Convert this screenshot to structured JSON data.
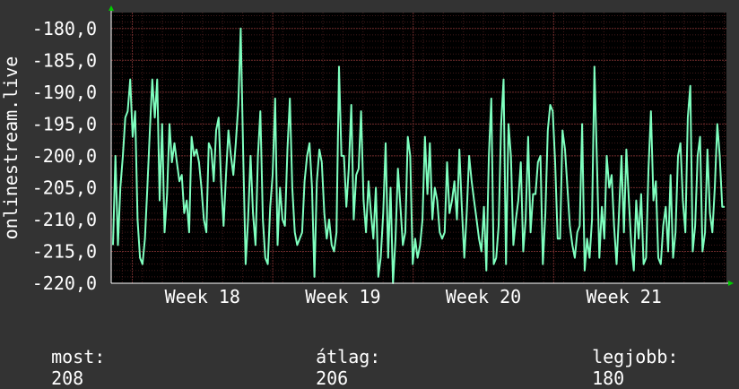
{
  "colors": {
    "background": "#333333",
    "plot_background": "#000000",
    "grid": "#6b2a2a",
    "line": "#7fffbf",
    "text": "#ffffff",
    "axis_arrow": "#00cc00"
  },
  "footer": {
    "current_label": "most:",
    "current_value": "208",
    "average_label": "átlag:",
    "average_value": "206",
    "best_label": "legjobb:",
    "best_value": "180"
  },
  "chart_data": {
    "type": "line",
    "title": "",
    "ylabel": "onlinestream.live",
    "xlabel": "",
    "ylim": [
      -220.0,
      -177.5
    ],
    "y_ticks": [
      -180,
      -185,
      -190,
      -195,
      -200,
      -205,
      -210,
      -215,
      -220
    ],
    "y_tick_labels": [
      "-180,0",
      "-185,0",
      "-190,0",
      "-195,0",
      "-200,0",
      "-205,0",
      "-210,0",
      "-215,0",
      "-220,0"
    ],
    "x_range_weeks": [
      17.35,
      21.73
    ],
    "x_ticks": [
      18,
      19,
      20,
      21
    ],
    "x_tick_labels": [
      "Week 18",
      "Week 19",
      "Week 20",
      "Week 21"
    ],
    "grid": true,
    "series": [
      {
        "values": [
          -214,
          -200,
          -214,
          -205,
          -200,
          -194,
          -193,
          -188,
          -197,
          -193,
          -210,
          -216,
          -217,
          -213,
          -205,
          -196,
          -188,
          -194,
          -188,
          -207,
          -195,
          -212,
          -206,
          -195,
          -201,
          -198,
          -201,
          -204,
          -203,
          -209,
          -207,
          -212,
          -197,
          -200,
          -199,
          -201,
          -205,
          -210,
          -212,
          -198,
          -199,
          -204,
          -196,
          -194,
          -204,
          -211,
          -203,
          -196,
          -200,
          -203,
          -198,
          -192,
          -180,
          -200,
          -217,
          -210,
          -200,
          -209,
          -214,
          -200,
          -193,
          -210,
          -216,
          -217,
          -208,
          -203,
          -191,
          -214,
          -205,
          -210,
          -211,
          -199,
          -191,
          -205,
          -212,
          -214,
          -213,
          -212,
          -204,
          -200,
          -198,
          -205,
          -219,
          -204,
          -199,
          -201,
          -209,
          -213,
          -210,
          -214,
          -215,
          -212,
          -186,
          -200,
          -200,
          -208,
          -202,
          -192,
          -210,
          -203,
          -202,
          -193,
          -207,
          -212,
          -204,
          -209,
          -213,
          -205,
          -219,
          -216,
          -209,
          -198,
          -216,
          -205,
          -220,
          -213,
          -202,
          -208,
          -214,
          -212,
          -197,
          -200,
          -217,
          -213,
          -216,
          -214,
          -210,
          -197,
          -206,
          -198,
          -210,
          -205,
          -207,
          -212,
          -213,
          -212,
          -201,
          -209,
          -207,
          -204,
          -210,
          -199,
          -208,
          -216,
          -209,
          -200,
          -204,
          -207,
          -210,
          -213,
          -215,
          -208,
          -218,
          -200,
          -191,
          -217,
          -216,
          -211,
          -195,
          -188,
          -217,
          -195,
          -200,
          -214,
          -210,
          -207,
          -201,
          -215,
          -210,
          -197,
          -212,
          -206,
          -206,
          -201,
          -200,
          -217,
          -209,
          -196,
          -192,
          -193,
          -201,
          -213,
          -213,
          -196,
          -199,
          -205,
          -211,
          -214,
          -216,
          -212,
          -211,
          -195,
          -218,
          -213,
          -216,
          -210,
          -186,
          -201,
          -216,
          -208,
          -213,
          -200,
          -205,
          -203,
          -211,
          -217,
          -209,
          -200,
          -212,
          -199,
          -207,
          -214,
          -218,
          -207,
          -213,
          -206,
          -217,
          -216,
          -202,
          -193,
          -207,
          -204,
          -216,
          -217,
          -211,
          -208,
          -215,
          -203,
          -216,
          -212,
          -200,
          -198,
          -207,
          -212,
          -194,
          -189,
          -215,
          -211,
          -200,
          -197,
          -215,
          -212,
          -199,
          -209,
          -212,
          -205,
          -195,
          -200,
          -208,
          -208
        ]
      }
    ]
  }
}
